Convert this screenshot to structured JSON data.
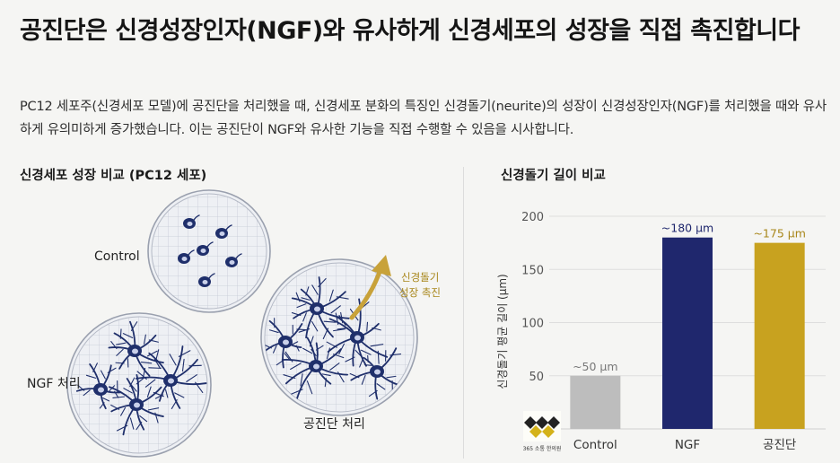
{
  "heading": {
    "title": "공진단은 신경성장인자(NGF)와 유사하게 신경세포의 성장을 직접 촉진합니다",
    "description": "PC12 세포주(신경세포 모델)에 공진단을 처리했을 때, 신경세포 분화의 특징인 신경돌기(neurite)의 성장이 신경성장인자(NGF)를 처리했을 때와 유사하게 유의미하게 증가했습니다. 이는 공진단이 NGF와 유사한 기능을 직접 수행할 수 있음을 시사합니다."
  },
  "left_panel": {
    "title": "신경세포 성장 비교 (PC12 세포)",
    "dishes": [
      {
        "label": "Control",
        "state": "round cells, no neurites"
      },
      {
        "label": "NGF 처리",
        "state": "branched neurites"
      },
      {
        "label": "공진단 처리",
        "state": "branched neurites"
      }
    ],
    "annotation_line1": "신경돌기",
    "annotation_line2": "성장 촉진",
    "logo_text": "365 소통 한의원",
    "colors": {
      "cell": "#1f2f6b",
      "dish_border": "#9aa0ae",
      "grid": "#c5cad6",
      "arrow": "#c8a23a"
    }
  },
  "chart_data": {
    "type": "bar",
    "title": "신경돌기 길이 비교",
    "ylabel": "신경돌기 평균 길이 (μm)",
    "xlabel": "",
    "categories": [
      "Control",
      "NGF",
      "공진단"
    ],
    "values": [
      50,
      180,
      175
    ],
    "data_labels": [
      "~50 μm",
      "~180 μm",
      "~175 μm"
    ],
    "colors": [
      "#bdbdbd",
      "#1f276d",
      "#c8a21f"
    ],
    "label_colors": [
      "#777777",
      "#1f276d",
      "#a8861a"
    ],
    "yticks": [
      50,
      100,
      150,
      200
    ],
    "ylim": [
      0,
      200
    ],
    "grid": true
  }
}
